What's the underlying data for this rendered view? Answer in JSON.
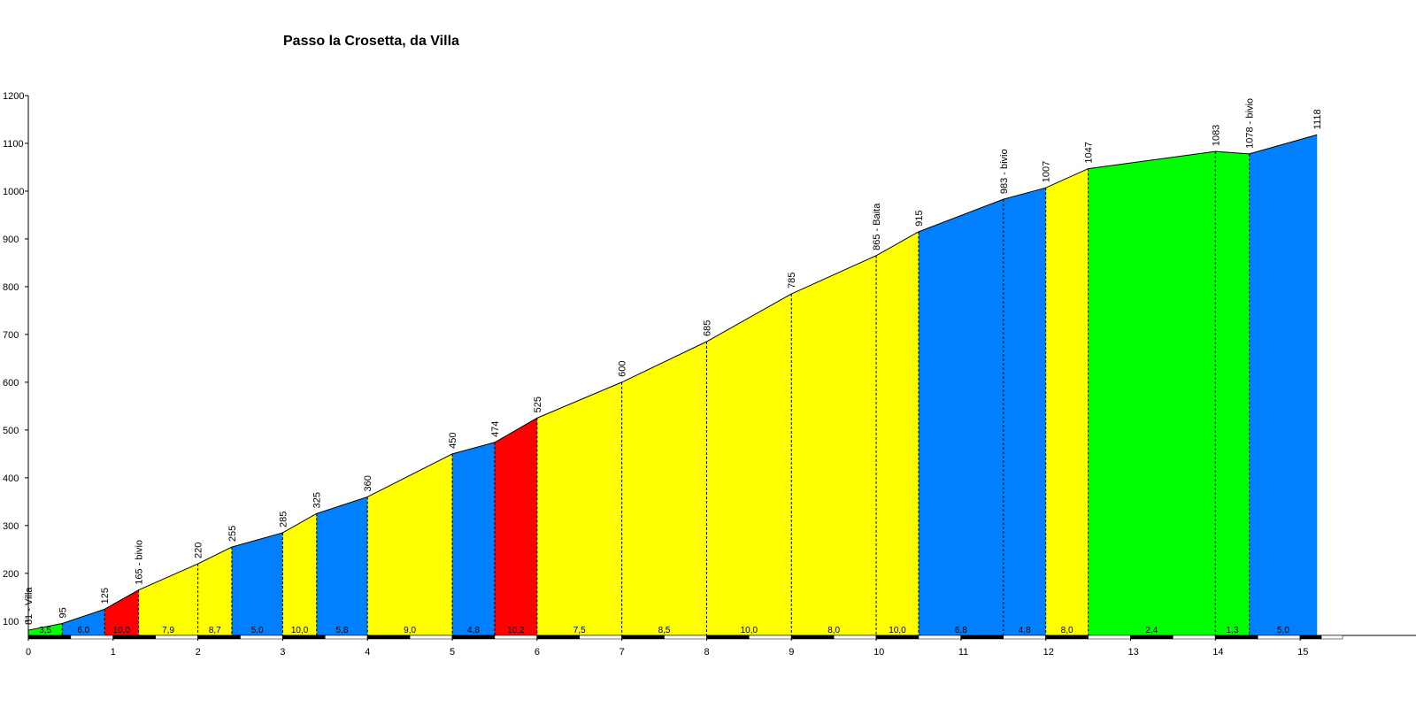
{
  "chart_data": {
    "type": "area",
    "title": "Passo la Crosetta, da Villa",
    "xlabel": "",
    "ylabel": "",
    "xlim": [
      0,
      15.5
    ],
    "ylim": [
      70,
      1200
    ],
    "yticks": [
      100,
      200,
      300,
      400,
      500,
      600,
      700,
      800,
      900,
      1000,
      1100,
      1200
    ],
    "xticks": [
      0,
      1,
      2,
      3,
      4,
      5,
      6,
      7,
      8,
      9,
      10,
      11,
      12,
      13,
      14,
      15
    ],
    "grid": false,
    "legend": "none",
    "colors": {
      "green": "#00ff00",
      "blue": "#0080ff",
      "red": "#ff0000",
      "yellow": "#ffff00"
    },
    "points": [
      {
        "x": 0.0,
        "y": 81,
        "label": "81 - Villa"
      },
      {
        "x": 0.4,
        "y": 95,
        "label": "95"
      },
      {
        "x": 0.9,
        "y": 125,
        "label": "125"
      },
      {
        "x": 1.3,
        "y": 165,
        "label": "165 - bivio"
      },
      {
        "x": 2.0,
        "y": 220,
        "label": "220"
      },
      {
        "x": 2.4,
        "y": 255,
        "label": "255"
      },
      {
        "x": 3.0,
        "y": 285,
        "label": "285"
      },
      {
        "x": 3.4,
        "y": 325,
        "label": "325"
      },
      {
        "x": 4.0,
        "y": 360,
        "label": "360"
      },
      {
        "x": 5.0,
        "y": 450,
        "label": "450"
      },
      {
        "x": 5.5,
        "y": 474,
        "label": "474"
      },
      {
        "x": 6.0,
        "y": 525,
        "label": "525"
      },
      {
        "x": 7.0,
        "y": 600,
        "label": "600"
      },
      {
        "x": 8.0,
        "y": 685,
        "label": "685"
      },
      {
        "x": 9.0,
        "y": 785,
        "label": "785"
      },
      {
        "x": 10.0,
        "y": 865,
        "label": "865 - Baita"
      },
      {
        "x": 10.5,
        "y": 915,
        "label": "915"
      },
      {
        "x": 11.5,
        "y": 983,
        "label": "983 - bivio"
      },
      {
        "x": 12.0,
        "y": 1007,
        "label": "1007"
      },
      {
        "x": 12.5,
        "y": 1047,
        "label": "1047"
      },
      {
        "x": 14.0,
        "y": 1083,
        "label": "1083"
      },
      {
        "x": 14.4,
        "y": 1078,
        "label": "1078 - bivio"
      },
      {
        "x": 15.2,
        "y": 1118,
        "label": "1118"
      }
    ],
    "segments": [
      {
        "gradient": "3,5",
        "color": "green"
      },
      {
        "gradient": "6,0",
        "color": "blue"
      },
      {
        "gradient": "10,0",
        "color": "red"
      },
      {
        "gradient": "7,9",
        "color": "yellow"
      },
      {
        "gradient": "8,7",
        "color": "yellow"
      },
      {
        "gradient": "5,0",
        "color": "blue"
      },
      {
        "gradient": "10,0",
        "color": "yellow"
      },
      {
        "gradient": "5,8",
        "color": "blue"
      },
      {
        "gradient": "9,0",
        "color": "yellow"
      },
      {
        "gradient": "4,8",
        "color": "blue"
      },
      {
        "gradient": "10,2",
        "color": "red"
      },
      {
        "gradient": "7,5",
        "color": "yellow"
      },
      {
        "gradient": "8,5",
        "color": "yellow"
      },
      {
        "gradient": "10,0",
        "color": "yellow"
      },
      {
        "gradient": "8,0",
        "color": "yellow"
      },
      {
        "gradient": "10,0",
        "color": "yellow"
      },
      {
        "gradient": "6,8",
        "color": "blue"
      },
      {
        "gradient": "4,8",
        "color": "blue"
      },
      {
        "gradient": "8,0",
        "color": "yellow"
      },
      {
        "gradient": "2,4",
        "color": "green"
      },
      {
        "gradient": "1,3",
        "color": "green"
      },
      {
        "gradient": "5,0",
        "color": "blue"
      }
    ]
  }
}
